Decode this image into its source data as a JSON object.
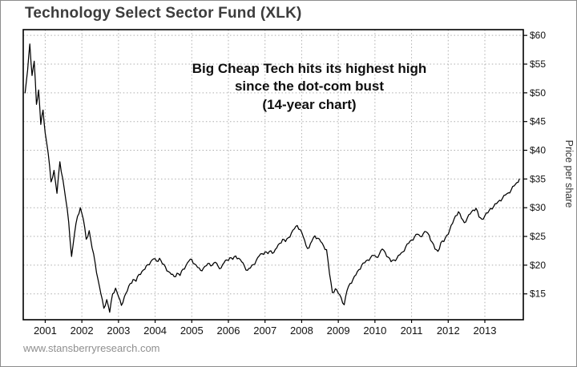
{
  "chart_data": {
    "type": "line",
    "title": "Technology Select Sector Fund (XLK)",
    "xlabel": "",
    "ylabel": "Price per share",
    "annotation": {
      "line1": "Big Cheap Tech hits its highest high",
      "line2": "since the dot-com bust",
      "line3": "(14-year chart)"
    },
    "x_ticks": [
      2001,
      2002,
      2003,
      2004,
      2005,
      2006,
      2007,
      2008,
      2009,
      2010,
      2011,
      2012,
      2013
    ],
    "y_tick_values": [
      60,
      55,
      50,
      45,
      40,
      35,
      30,
      25,
      20,
      15
    ],
    "y_tick_labels": [
      "$60",
      "$55",
      "$50",
      "$45",
      "$40",
      "$35",
      "$30",
      "$25",
      "$20",
      "$15"
    ],
    "xlim": [
      2000.4,
      2014.05
    ],
    "ylim": [
      10.5,
      61
    ],
    "grid": "dotted",
    "line_color": "#000000",
    "series": [
      {
        "name": "XLK price per share",
        "points": [
          [
            2000.45,
            50.0
          ],
          [
            2000.52,
            54.0
          ],
          [
            2000.58,
            58.5
          ],
          [
            2000.64,
            53.0
          ],
          [
            2000.7,
            55.5
          ],
          [
            2000.76,
            48.0
          ],
          [
            2000.82,
            50.5
          ],
          [
            2000.88,
            44.5
          ],
          [
            2000.94,
            47.0
          ],
          [
            2001.0,
            43.0
          ],
          [
            2001.08,
            39.5
          ],
          [
            2001.16,
            34.5
          ],
          [
            2001.24,
            36.5
          ],
          [
            2001.32,
            32.5
          ],
          [
            2001.4,
            38.0
          ],
          [
            2001.48,
            35.0
          ],
          [
            2001.56,
            31.5
          ],
          [
            2001.64,
            27.5
          ],
          [
            2001.72,
            21.5
          ],
          [
            2001.8,
            25.5
          ],
          [
            2001.88,
            28.5
          ],
          [
            2001.96,
            30.0
          ],
          [
            2002.04,
            28.0
          ],
          [
            2002.12,
            24.5
          ],
          [
            2002.2,
            26.0
          ],
          [
            2002.28,
            23.0
          ],
          [
            2002.36,
            20.5
          ],
          [
            2002.44,
            17.5
          ],
          [
            2002.52,
            15.0
          ],
          [
            2002.6,
            12.5
          ],
          [
            2002.68,
            14.0
          ],
          [
            2002.76,
            11.8
          ],
          [
            2002.84,
            15.0
          ],
          [
            2002.92,
            16.0
          ],
          [
            2003.0,
            14.5
          ],
          [
            2003.08,
            13.0
          ],
          [
            2003.16,
            14.5
          ],
          [
            2003.24,
            15.5
          ],
          [
            2003.32,
            16.8
          ],
          [
            2003.4,
            17.5
          ],
          [
            2003.48,
            17.2
          ],
          [
            2003.56,
            18.4
          ],
          [
            2003.64,
            18.9
          ],
          [
            2003.72,
            19.3
          ],
          [
            2003.8,
            20.1
          ],
          [
            2003.88,
            20.6
          ],
          [
            2003.96,
            21.1
          ],
          [
            2004.04,
            20.7
          ],
          [
            2004.12,
            21.2
          ],
          [
            2004.2,
            20.2
          ],
          [
            2004.28,
            19.7
          ],
          [
            2004.36,
            18.9
          ],
          [
            2004.44,
            18.4
          ],
          [
            2004.52,
            18.0
          ],
          [
            2004.6,
            18.6
          ],
          [
            2004.68,
            18.2
          ],
          [
            2004.76,
            19.3
          ],
          [
            2004.84,
            19.9
          ],
          [
            2004.92,
            20.7
          ],
          [
            2005.0,
            21.0
          ],
          [
            2005.08,
            20.2
          ],
          [
            2005.16,
            19.6
          ],
          [
            2005.24,
            19.1
          ],
          [
            2005.32,
            19.5
          ],
          [
            2005.4,
            19.9
          ],
          [
            2005.48,
            20.3
          ],
          [
            2005.56,
            20.0
          ],
          [
            2005.64,
            20.5
          ],
          [
            2005.72,
            19.8
          ],
          [
            2005.8,
            19.5
          ],
          [
            2005.88,
            20.4
          ],
          [
            2005.96,
            20.9
          ],
          [
            2006.04,
            21.3
          ],
          [
            2006.12,
            21.0
          ],
          [
            2006.2,
            21.6
          ],
          [
            2006.28,
            21.2
          ],
          [
            2006.36,
            20.6
          ],
          [
            2006.44,
            19.8
          ],
          [
            2006.52,
            19.1
          ],
          [
            2006.6,
            19.5
          ],
          [
            2006.68,
            20.1
          ],
          [
            2006.76,
            20.8
          ],
          [
            2006.84,
            21.6
          ],
          [
            2006.92,
            22.0
          ],
          [
            2007.0,
            22.3
          ],
          [
            2007.08,
            22.0
          ],
          [
            2007.16,
            22.5
          ],
          [
            2007.24,
            22.2
          ],
          [
            2007.32,
            23.0
          ],
          [
            2007.4,
            23.8
          ],
          [
            2007.48,
            24.5
          ],
          [
            2007.56,
            24.1
          ],
          [
            2007.64,
            24.8
          ],
          [
            2007.72,
            25.6
          ],
          [
            2007.8,
            26.3
          ],
          [
            2007.88,
            26.9
          ],
          [
            2007.96,
            26.2
          ],
          [
            2008.04,
            25.0
          ],
          [
            2008.12,
            23.4
          ],
          [
            2008.2,
            23.0
          ],
          [
            2008.28,
            24.2
          ],
          [
            2008.36,
            25.1
          ],
          [
            2008.44,
            24.7
          ],
          [
            2008.52,
            24.1
          ],
          [
            2008.6,
            23.3
          ],
          [
            2008.68,
            22.7
          ],
          [
            2008.76,
            18.5
          ],
          [
            2008.84,
            15.2
          ],
          [
            2008.92,
            15.9
          ],
          [
            2009.0,
            15.1
          ],
          [
            2009.08,
            14.3
          ],
          [
            2009.16,
            13.1
          ],
          [
            2009.24,
            15.6
          ],
          [
            2009.32,
            16.8
          ],
          [
            2009.4,
            17.5
          ],
          [
            2009.48,
            18.3
          ],
          [
            2009.56,
            19.2
          ],
          [
            2009.64,
            20.0
          ],
          [
            2009.72,
            20.4
          ],
          [
            2009.8,
            20.9
          ],
          [
            2009.88,
            21.3
          ],
          [
            2009.96,
            21.7
          ],
          [
            2010.04,
            21.4
          ],
          [
            2010.12,
            21.9
          ],
          [
            2010.2,
            22.8
          ],
          [
            2010.28,
            22.2
          ],
          [
            2010.36,
            21.4
          ],
          [
            2010.44,
            20.6
          ],
          [
            2010.52,
            20.9
          ],
          [
            2010.6,
            21.2
          ],
          [
            2010.68,
            21.8
          ],
          [
            2010.76,
            22.3
          ],
          [
            2010.84,
            23.2
          ],
          [
            2010.92,
            23.8
          ],
          [
            2011.0,
            24.4
          ],
          [
            2011.08,
            24.9
          ],
          [
            2011.16,
            25.4
          ],
          [
            2011.24,
            25.0
          ],
          [
            2011.32,
            25.5
          ],
          [
            2011.4,
            25.8
          ],
          [
            2011.48,
            25.2
          ],
          [
            2011.56,
            24.0
          ],
          [
            2011.64,
            22.8
          ],
          [
            2011.72,
            22.4
          ],
          [
            2011.8,
            23.9
          ],
          [
            2011.88,
            24.1
          ],
          [
            2011.96,
            25.2
          ],
          [
            2012.04,
            26.1
          ],
          [
            2012.12,
            27.3
          ],
          [
            2012.2,
            28.6
          ],
          [
            2012.28,
            29.3
          ],
          [
            2012.36,
            28.2
          ],
          [
            2012.44,
            27.4
          ],
          [
            2012.52,
            28.2
          ],
          [
            2012.6,
            28.9
          ],
          [
            2012.68,
            29.6
          ],
          [
            2012.76,
            29.9
          ],
          [
            2012.84,
            28.4
          ],
          [
            2012.92,
            28.0
          ],
          [
            2013.0,
            28.6
          ],
          [
            2013.08,
            29.1
          ],
          [
            2013.16,
            29.9
          ],
          [
            2013.24,
            30.2
          ],
          [
            2013.32,
            30.7
          ],
          [
            2013.4,
            31.3
          ],
          [
            2013.48,
            31.6
          ],
          [
            2013.56,
            32.2
          ],
          [
            2013.64,
            32.6
          ],
          [
            2013.72,
            33.1
          ],
          [
            2013.8,
            33.8
          ],
          [
            2013.88,
            34.4
          ],
          [
            2013.94,
            35.0
          ]
        ]
      }
    ]
  },
  "footer": {
    "watermark": "www.stansberryresearch.com"
  }
}
